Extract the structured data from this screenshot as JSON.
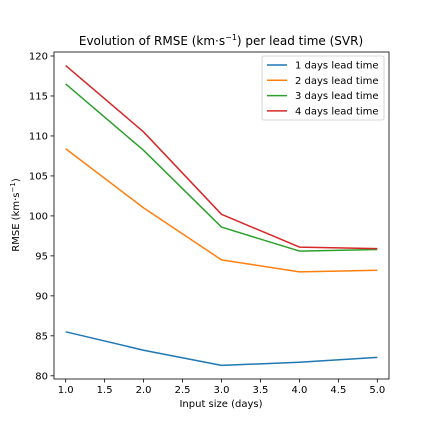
{
  "chart_data": {
    "type": "line",
    "title": "Evolution of RMSE (km·s",
    "title_exp": "−1",
    "title_end": ") per lead time (SVR)",
    "xlabel": "Input size (days)",
    "ylabel": "RMSE (km·s",
    "ylabel_exp": "−1",
    "ylabel_end": ")",
    "x": [
      1.0,
      2.0,
      3.0,
      4.0,
      5.0
    ],
    "xlim": [
      0.85,
      5.15
    ],
    "ylim": [
      79.6,
      120.5
    ],
    "xticks": [
      "1.0",
      "1.5",
      "2.0",
      "2.5",
      "3.0",
      "3.5",
      "4.0",
      "4.5",
      "5.0"
    ],
    "xtick_values": [
      1.0,
      1.5,
      2.0,
      2.5,
      3.0,
      3.5,
      4.0,
      4.5,
      5.0
    ],
    "yticks": [
      "80",
      "85",
      "90",
      "95",
      "100",
      "105",
      "110",
      "115",
      "120"
    ],
    "ytick_values": [
      80,
      85,
      90,
      95,
      100,
      105,
      110,
      115,
      120
    ],
    "grid": false,
    "legend_position": "top-right",
    "series": [
      {
        "name": "1 days lead time",
        "color": "#1f77b4",
        "values": [
          85.5,
          83.2,
          81.3,
          81.7,
          82.3
        ]
      },
      {
        "name": "2 days lead time",
        "color": "#ff7f0e",
        "values": [
          108.4,
          101.0,
          94.5,
          93.0,
          93.2
        ]
      },
      {
        "name": "3 days lead time",
        "color": "#2ca02c",
        "values": [
          116.5,
          108.2,
          98.6,
          95.6,
          95.8
        ]
      },
      {
        "name": "4 days lead time",
        "color": "#d62728",
        "values": [
          118.8,
          110.5,
          100.2,
          96.1,
          95.9
        ]
      }
    ]
  }
}
